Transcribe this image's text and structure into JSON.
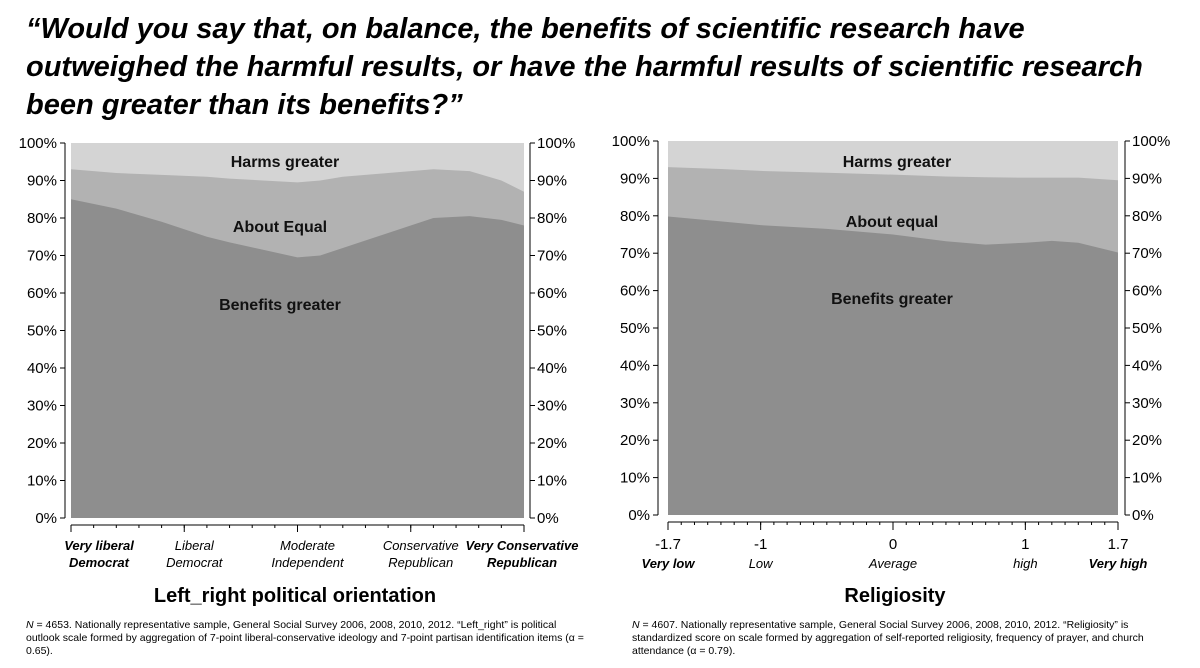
{
  "title": "“Would you say that, on balance, the benefits of scientific research have outweighed the harmful results, or have the harmful results of scientific research been greater than its benefits?”",
  "colors": {
    "harms": "#d4d4d4",
    "equal": "#b2b2b2",
    "benefits": "#8e8e8e",
    "panel_bg": "#ffffff",
    "axis": "#000000"
  },
  "chart_data": [
    {
      "type": "area",
      "xlabel": "Left_right political orientation",
      "ylim": [
        0,
        100
      ],
      "yticks": [
        "0%",
        "10%",
        "20%",
        "30%",
        "40%",
        "50%",
        "60%",
        "70%",
        "80%",
        "90%",
        "100%"
      ],
      "x_categories": [
        {
          "lines": [
            "Very liberal",
            "Democrat"
          ],
          "x": 0,
          "bold": true
        },
        {
          "lines": [
            "Liberal",
            "Democrat"
          ],
          "x": 0.25,
          "bold": false
        },
        {
          "lines": [
            "Moderate",
            "Independent"
          ],
          "x": 0.5,
          "bold": false
        },
        {
          "lines": [
            "Conservative",
            "Republican"
          ],
          "x": 0.75,
          "bold": false
        },
        {
          "lines": [
            "Very Conservative",
            "Republican"
          ],
          "x": 1,
          "bold": true
        }
      ],
      "x": [
        0,
        0.1,
        0.2,
        0.3,
        0.35,
        0.5,
        0.55,
        0.6,
        0.7,
        0.8,
        0.88,
        0.95,
        1
      ],
      "benefits_greater": [
        85,
        82.5,
        79,
        75,
        73.5,
        69.5,
        70,
        72,
        76,
        80,
        80.5,
        79.5,
        78
      ],
      "benefits_plus_equal": [
        93,
        92,
        91.5,
        91,
        90.5,
        89.5,
        90,
        91,
        92,
        93,
        92.5,
        90,
        87
      ],
      "labels": {
        "harms": "Harms greater",
        "equal": "About Equal",
        "benefits": "Benefits greater"
      }
    },
    {
      "type": "area",
      "xlabel": "Religiosity",
      "ylim": [
        0,
        100
      ],
      "xlim": [
        -1.7,
        1.7
      ],
      "yticks": [
        "0%",
        "10%",
        "20%",
        "30%",
        "40%",
        "50%",
        "60%",
        "70%",
        "80%",
        "90%",
        "100%"
      ],
      "xticks": [
        {
          "value": -1.7,
          "label": "-1.7",
          "sub": "Very low",
          "bold": true
        },
        {
          "value": -1,
          "label": "-1",
          "sub": "Low",
          "bold": false
        },
        {
          "value": 0,
          "label": "0",
          "sub": "Average",
          "bold": false
        },
        {
          "value": 1,
          "label": "1",
          "sub": "high",
          "bold": false
        },
        {
          "value": 1.7,
          "label": "1.7",
          "sub": "Very high",
          "bold": true
        }
      ],
      "x": [
        -1.7,
        -1.3,
        -1,
        -0.5,
        0,
        0.4,
        0.7,
        1,
        1.2,
        1.4,
        1.7
      ],
      "benefits_greater": [
        79.8,
        78.5,
        77.5,
        76.5,
        75,
        73.2,
        72.3,
        72.8,
        73.3,
        72.8,
        70.2
      ],
      "benefits_plus_equal": [
        93,
        92.5,
        92,
        91.5,
        91,
        90.5,
        90.3,
        90.2,
        90.2,
        90.2,
        89.5
      ],
      "labels": {
        "harms": "Harms greater",
        "equal": "About equal",
        "benefits": "Benefits greater"
      }
    }
  ],
  "footnotes": {
    "left_n": "N",
    "left_text": " = 4653. Nationally representative sample,  General Social Survey 2006, 2008, 2010, 2012. “Left_right” is political outlook  scale formed by aggregation of 7-point liberal-conservative ideology and 7-point partisan identification items (α = 0.65).",
    "right_n": "N",
    "right_text": " = 4607. Nationally representative sample,  General Social Survey 2006, 2008, 2010, 2012. “Religiosity” is standardized score on  scale formed by aggregation of self-reported religiosity, frequency of prayer, and church attendance  (α = 0.79)."
  }
}
